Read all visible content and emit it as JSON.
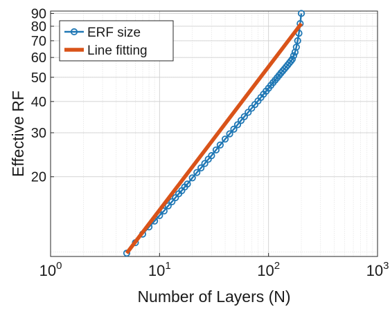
{
  "chart_data": {
    "type": "scatter",
    "xscale": "log",
    "yscale": "log",
    "xlim": [
      1,
      1000
    ],
    "ylim": [
      9.6,
      92
    ],
    "xlabel": "Number of Layers (N)",
    "ylabel": "Effective RF",
    "xticks": [
      {
        "value": 1,
        "base": "10",
        "exp": "0"
      },
      {
        "value": 10,
        "base": "10",
        "exp": "1"
      },
      {
        "value": 100,
        "base": "10",
        "exp": "2"
      },
      {
        "value": 1000,
        "base": "10",
        "exp": "3"
      }
    ],
    "yticks": [
      {
        "value": 20,
        "label": "20"
      },
      {
        "value": 30,
        "label": "30"
      },
      {
        "value": 40,
        "label": "40"
      },
      {
        "value": 50,
        "label": "50"
      },
      {
        "value": 60,
        "label": "60"
      },
      {
        "value": 70,
        "label": "70"
      },
      {
        "value": 80,
        "label": "80"
      },
      {
        "value": 90,
        "label": "90"
      }
    ],
    "grid": true,
    "minor_grid": true,
    "legend_position": "top-left",
    "series": [
      {
        "name": "ERF size",
        "kind": "markers-line",
        "color": "#1f77b4",
        "x": [
          5,
          6,
          7,
          8,
          9,
          10,
          11,
          12,
          13,
          14,
          15,
          16,
          17,
          18,
          20,
          22,
          24,
          26,
          28,
          30,
          33,
          36,
          40,
          44,
          48,
          52,
          56,
          60,
          65,
          70,
          75,
          80,
          85,
          90,
          95,
          100,
          105,
          110,
          115,
          120,
          125,
          130,
          135,
          140,
          145,
          150,
          155,
          160,
          165,
          170,
          175,
          180,
          185,
          190,
          195,
          200
        ],
        "y": [
          9.9,
          10.9,
          11.8,
          12.6,
          13.3,
          14.0,
          14.6,
          15.3,
          15.9,
          16.5,
          17.1,
          17.6,
          18.2,
          18.7,
          19.8,
          20.8,
          21.7,
          22.6,
          23.5,
          24.3,
          25.6,
          26.8,
          28.3,
          29.7,
          31.0,
          32.3,
          33.6,
          34.8,
          36.2,
          37.6,
          38.9,
          40.2,
          41.5,
          42.8,
          44.0,
          45.2,
          46.4,
          47.6,
          48.7,
          49.8,
          50.9,
          52.0,
          53.0,
          54.0,
          55.0,
          56.0,
          57.0,
          58.0,
          59.0,
          61.0,
          63.0,
          66.0,
          70.0,
          75.0,
          82.0,
          90.0
        ]
      },
      {
        "name": "Line fitting",
        "kind": "line",
        "color": "#d95319",
        "x": [
          5,
          200
        ],
        "y": [
          9.9,
          82
        ]
      }
    ]
  }
}
